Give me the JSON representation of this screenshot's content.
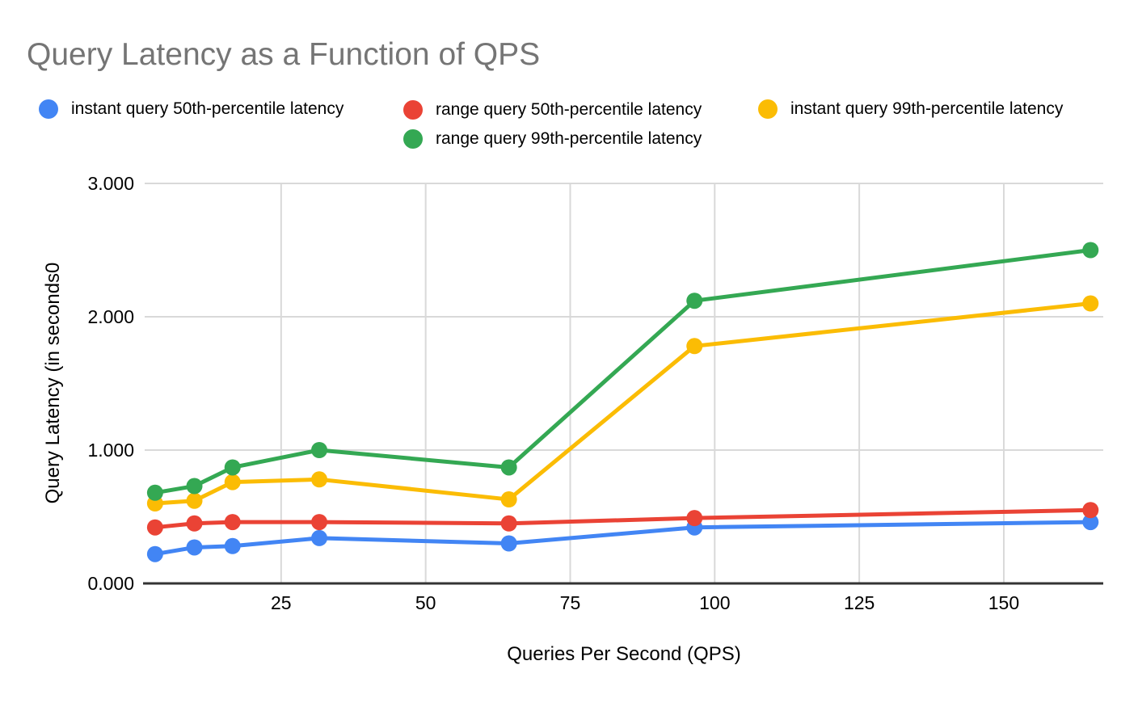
{
  "title": "Query Latency as a Function of QPS",
  "chart_data": {
    "type": "line",
    "title": "Query Latency as a Function of QPS",
    "xlabel": "Queries Per Second (QPS)",
    "ylabel": "Query Latency (in seconds0",
    "x": [
      3.2,
      10,
      16.6,
      31.6,
      64.4,
      96.5,
      165
    ],
    "series": [
      {
        "name": "instant query 50th-percentile latency",
        "color": "#4285F4",
        "values": [
          0.22,
          0.27,
          0.28,
          0.34,
          0.3,
          0.42,
          0.46
        ]
      },
      {
        "name": "range query 50th-percentile latency",
        "color": "#EA4335",
        "values": [
          0.42,
          0.45,
          0.46,
          0.46,
          0.45,
          0.49,
          0.55
        ]
      },
      {
        "name": "instant query 99th-percentile latency",
        "color": "#FBBC04",
        "values": [
          0.6,
          0.62,
          0.76,
          0.78,
          0.63,
          1.78,
          2.1
        ]
      },
      {
        "name": "range query 99th-percentile latency",
        "color": "#34A853",
        "values": [
          0.68,
          0.73,
          0.87,
          1.0,
          0.87,
          2.12,
          2.5
        ]
      }
    ],
    "x_ticks": [
      {
        "value": 25,
        "label": "25"
      },
      {
        "value": 50,
        "label": "50"
      },
      {
        "value": 75,
        "label": "75"
      },
      {
        "value": 100,
        "label": "100"
      },
      {
        "value": 125,
        "label": "125"
      },
      {
        "value": 150,
        "label": "150"
      }
    ],
    "y_ticks": [
      {
        "value": 0,
        "label": "0.000"
      },
      {
        "value": 1,
        "label": "1.000"
      },
      {
        "value": 2,
        "label": "2.000"
      },
      {
        "value": 3,
        "label": "3.000"
      }
    ],
    "xlim": [
      1.4,
      167.2
    ],
    "ylim": [
      0,
      3
    ],
    "grid": true,
    "legend_position": "top",
    "title_color": "#757575",
    "text_color": "#000000",
    "grid_color": "#d9d9d9",
    "axis_color": "#333333",
    "background_color": "#ffffff"
  }
}
